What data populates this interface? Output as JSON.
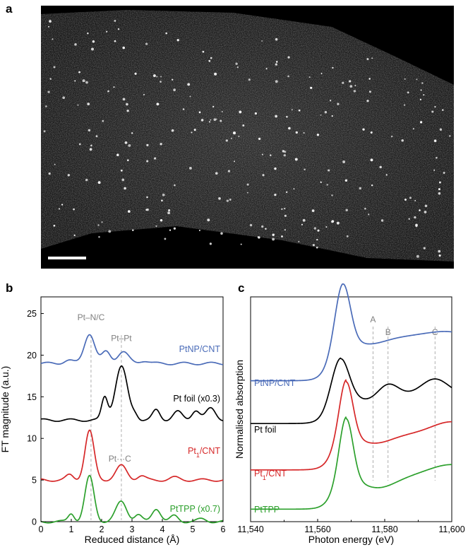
{
  "panel_a": {
    "label": "a",
    "description_type": "microscopy",
    "colors": {
      "background": "#000000",
      "features": "#ffffff"
    }
  },
  "chart_data": [
    {
      "panel": "b",
      "type": "line",
      "title": "",
      "xlabel": "Reduced distance (Å)",
      "ylabel": "FT magnitude (a.u.)",
      "xlim": [
        0,
        6
      ],
      "ylim": [
        0,
        27
      ],
      "xticks": [
        0,
        1,
        2,
        3,
        4,
        5,
        6
      ],
      "yticks": [
        0,
        5,
        10,
        15,
        20,
        25
      ],
      "series": [
        {
          "name": "PtNP/CNT",
          "color": "#4a6bb8",
          "offset": 19,
          "peaks": [
            [
              1.6,
              3.6,
              0.17
            ],
            [
              2.15,
              1.4,
              0.14
            ],
            [
              2.7,
              1.4,
              0.18
            ],
            [
              0.9,
              0.4,
              0.15
            ],
            [
              3.4,
              0.35,
              0.15
            ]
          ]
        },
        {
          "name": "Pt foil (x0.3)",
          "color": "#000000",
          "offset": 12.2,
          "peaks": [
            [
              2.1,
              2.7,
              0.1
            ],
            [
              2.65,
              6.4,
              0.2
            ],
            [
              3.1,
              0.6,
              0.1
            ],
            [
              3.8,
              1.2,
              0.12
            ],
            [
              4.5,
              1.0,
              0.15
            ],
            [
              5.1,
              1.2,
              0.13
            ],
            [
              5.6,
              1.4,
              0.16
            ]
          ]
        },
        {
          "name": "Pt1/CNT",
          "name_main": "Pt",
          "name_sub": "1",
          "name_rest": "/CNT",
          "color": "#d62728",
          "offset": 5,
          "peaks": [
            [
              1.6,
              5.9,
              0.15
            ],
            [
              2.65,
              1.7,
              0.18
            ],
            [
              0.95,
              0.6,
              0.12
            ],
            [
              3.3,
              0.5,
              0.13
            ],
            [
              4.4,
              0.3,
              0.15
            ]
          ]
        },
        {
          "name": "PtTPP (x0.7)",
          "color": "#2ca02c",
          "offset": 0,
          "peaks": [
            [
              1.6,
              5.4,
              0.15
            ],
            [
              2.65,
              2.4,
              0.18
            ],
            [
              1.0,
              1.0,
              0.1
            ],
            [
              3.2,
              0.8,
              0.12
            ],
            [
              3.8,
              1.6,
              0.14
            ],
            [
              4.4,
              0.7,
              0.13
            ],
            [
              5.3,
              0.3,
              0.15
            ]
          ]
        }
      ],
      "annotations": [
        {
          "text": "Pt–N/C",
          "x": 1.65,
          "y": 24.2
        },
        {
          "text": "Pt–Pt",
          "x": 2.65,
          "y": 21.7
        },
        {
          "text": "Pt···C",
          "x": 2.6,
          "y": 7.2
        }
      ],
      "reference_lines_x": [
        1.65,
        2.65
      ]
    },
    {
      "panel": "c",
      "type": "line",
      "title": "",
      "xlabel": "Photon energy (eV)",
      "ylabel": "Normalised absorption",
      "xlim": [
        11540,
        11600
      ],
      "xticks": [
        "11,540",
        "11,560",
        "11,580",
        "11,600"
      ],
      "xtick_values": [
        11540,
        11560,
        11580,
        11600
      ],
      "series": [
        {
          "name": "PtNP/CNT",
          "color": "#4a6bb8",
          "base": 3.6,
          "edge": 11563.5,
          "edge_height": 1.1,
          "wl_center": 11567.5,
          "wl_height": 1.7,
          "wl_width": 2.2,
          "tail": [
            [
              11576,
              -0.1,
              4
            ],
            [
              11590,
              0.15,
              8
            ],
            [
              11600,
              0.2,
              6
            ]
          ]
        },
        {
          "name": "Pt foil",
          "color": "#000000",
          "base": 2.4,
          "edge": 11563,
          "edge_height": 0.8,
          "wl_center": 11566.8,
          "wl_height": 1.1,
          "wl_width": 2.5,
          "tail": [
            [
              11581,
              0.35,
              3
            ],
            [
              11595,
              0.45,
              4
            ],
            [
              11575,
              -0.15,
              4
            ]
          ]
        },
        {
          "name": "Pt1/CNT",
          "name_main": "Pt",
          "name_sub": "1",
          "name_rest": "/CNT",
          "color": "#d62728",
          "base": 1.1,
          "edge": 11564.5,
          "edge_height": 1.0,
          "wl_center": 11568.5,
          "wl_height": 1.6,
          "wl_width": 2.0,
          "tail": [
            [
              11577,
              -0.25,
              5
            ],
            [
              11600,
              0.35,
              6
            ]
          ]
        },
        {
          "name": "PtTPP",
          "color": "#2ca02c",
          "base": 0.0,
          "edge": 11564.5,
          "edge_height": 0.9,
          "wl_center": 11568.5,
          "wl_height": 1.75,
          "wl_width": 2.0,
          "tail": [
            [
              11578,
              -0.3,
              5
            ],
            [
              11600,
              0.35,
              7
            ]
          ]
        }
      ],
      "reference_lines": [
        {
          "label": "A",
          "x": 11576.5
        },
        {
          "label": "B",
          "x": 11581
        },
        {
          "label": "C",
          "x": 11595
        }
      ]
    }
  ]
}
